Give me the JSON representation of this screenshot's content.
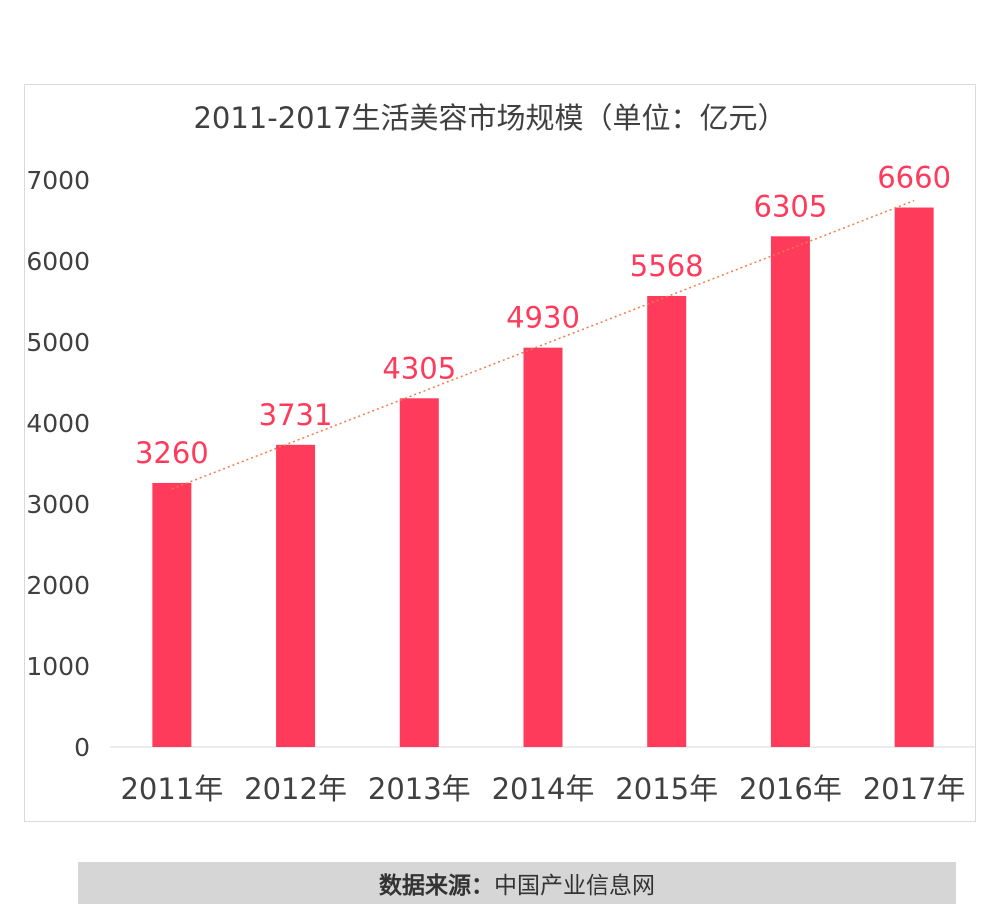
{
  "chart_data": {
    "type": "bar",
    "title": "2011-2017生活美容市场规模（单位：亿元）",
    "categories": [
      "2011年",
      "2012年",
      "2013年",
      "2014年",
      "2015年",
      "2016年",
      "2017年"
    ],
    "values": [
      3260,
      3731,
      4305,
      4930,
      5568,
      6305,
      6660
    ],
    "ylim": [
      0,
      7000
    ],
    "yticks": [
      0,
      1000,
      2000,
      3000,
      4000,
      5000,
      6000,
      7000
    ],
    "xlabel": "",
    "ylabel": "",
    "grid": false,
    "trendline": "linear",
    "colors": {
      "bar": "#ff3b5c",
      "label": "#ff3b5c",
      "trend": "#f07b4a",
      "axis_text": "#404040"
    }
  },
  "source": {
    "label": "数据来源：",
    "value": "中国产业信息网"
  }
}
